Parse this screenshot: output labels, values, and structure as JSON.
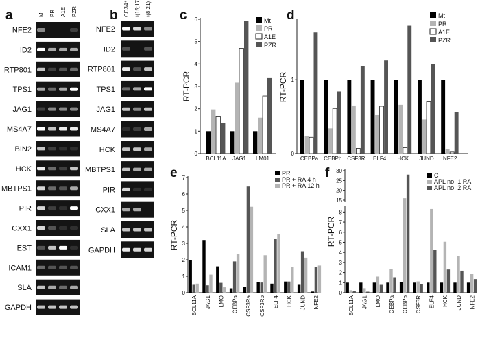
{
  "panels": {
    "a": "a",
    "b": "b",
    "c": "c",
    "d": "d",
    "e": "e",
    "f": "f"
  },
  "gels": [
    {
      "panel": "a",
      "lanes": [
        "Mt",
        "PR",
        "A1E",
        "PZR"
      ],
      "rows": [
        {
          "gene": "NFE2",
          "bands": [
            0.5,
            0,
            0,
            0.2
          ]
        },
        {
          "gene": "ID2",
          "bands": [
            1,
            0.6,
            0.6,
            0.6
          ]
        },
        {
          "gene": "RTP801",
          "bands": [
            0.7,
            0.2,
            0.3,
            0.4
          ]
        },
        {
          "gene": "TPS1",
          "bands": [
            0.6,
            0.4,
            0.6,
            1
          ]
        },
        {
          "gene": "JAG1",
          "bands": [
            0.2,
            0.5,
            0.5,
            0.5
          ]
        },
        {
          "gene": "MS4A7",
          "bands": [
            1,
            0.7,
            0.9,
            0.9
          ]
        },
        {
          "gene": "BIN2",
          "bands": [
            0.7,
            0.2,
            0.1,
            0.1
          ]
        },
        {
          "gene": "HCK",
          "bands": [
            0.9,
            0.4,
            0.2,
            0.7
          ]
        },
        {
          "gene": "MBTPS1",
          "bands": [
            0.8,
            0.4,
            0.3,
            0.6
          ]
        },
        {
          "gene": "PIR",
          "bands": [
            0.8,
            0.2,
            0.1,
            1
          ]
        },
        {
          "gene": "CXX1",
          "bands": [
            0.8,
            0.3,
            0.1,
            0.1
          ]
        },
        {
          "gene": "EST",
          "bands": [
            0.3,
            0.7,
            1,
            0.1
          ]
        },
        {
          "gene": "ICAM1",
          "bands": [
            0.4,
            0.3,
            0.3,
            0.3
          ]
        },
        {
          "gene": "SLA",
          "bands": [
            0.7,
            0.6,
            0.4,
            0.6
          ]
        },
        {
          "gene": "GAPDH",
          "bands": [
            0.7,
            0.7,
            0.7,
            0.7
          ]
        }
      ]
    },
    {
      "panel": "b",
      "lanes": [
        "CD34⁺",
        "t(15;17)",
        "t(8;21)"
      ],
      "rows": [
        {
          "gene": "NFE2",
          "bands": [
            1,
            0.8,
            0.5
          ]
        },
        {
          "gene": "ID2",
          "bands": [
            0.3,
            0,
            0.3
          ]
        },
        {
          "gene": "RTP801",
          "bands": [
            0.9,
            0.3,
            0.7
          ]
        },
        {
          "gene": "TPS1",
          "bands": [
            0.4,
            0.6,
            1
          ]
        },
        {
          "gene": "JAG1",
          "bands": [
            0.7,
            0.5,
            0.7
          ]
        },
        {
          "gene": "MS4A7",
          "bands": [
            0.1,
            0.2,
            0.6
          ]
        },
        {
          "gene": "HCK",
          "bands": [
            0.7,
            0.7,
            0.6
          ]
        },
        {
          "gene": "MBTPS1",
          "bands": [
            0.7,
            0.6,
            0.6
          ]
        },
        {
          "gene": "PIR",
          "bands": [
            0.8,
            0.1,
            0.1
          ]
        },
        {
          "gene": "CXX1",
          "bands": [
            0.6,
            0.6,
            0
          ]
        },
        {
          "gene": "SLA",
          "bands": [
            0.7,
            0.7,
            0.7
          ]
        },
        {
          "gene": "GAPDH",
          "bands": [
            0.9,
            0.8,
            0.8
          ]
        }
      ]
    }
  ],
  "chart_data": [
    {
      "panel": "c",
      "type": "bar",
      "ylabel": "RT-PCR",
      "ylim": [
        0,
        6
      ],
      "yticks": [
        0,
        1,
        2,
        3,
        4,
        5,
        6
      ],
      "legend": "top-right",
      "categories": [
        "BCL11A",
        "JAG1",
        "LM01"
      ],
      "series": [
        {
          "name": "Mt",
          "color": "#000000",
          "values": [
            1,
            1,
            1
          ]
        },
        {
          "name": "PR",
          "color": "#b4b4b4",
          "values": [
            1.97,
            3.17,
            1.6
          ]
        },
        {
          "name": "A1E",
          "color": "#ffffff",
          "values": [
            1.67,
            4.7,
            2.57
          ]
        },
        {
          "name": "PZR",
          "color": "#555555",
          "values": [
            1.37,
            5.93,
            3.37
          ]
        }
      ]
    },
    {
      "panel": "d",
      "type": "bar",
      "ylabel": "RT-PCR",
      "ylim": [
        0,
        1.8
      ],
      "yticks": [
        0,
        1
      ],
      "legend": "top-right",
      "categories": [
        "CEBPa",
        "CEBPb",
        "CSF3R",
        "ELF4",
        "HCK",
        "JUND",
        "NFE2"
      ],
      "series": [
        {
          "name": "Mt",
          "color": "#000000",
          "values": [
            1,
            1,
            1,
            1,
            1,
            1,
            1
          ]
        },
        {
          "name": "PR",
          "color": "#b4b4b4",
          "values": [
            0.24,
            0.34,
            0.65,
            0.52,
            0.66,
            0.46,
            0.06
          ]
        },
        {
          "name": "A1E",
          "color": "#ffffff",
          "values": [
            0.22,
            0.61,
            0.07,
            0.64,
            0.08,
            0.7,
            0.02
          ]
        },
        {
          "name": "PZR",
          "color": "#555555",
          "values": [
            1.64,
            0.84,
            1.18,
            1.26,
            1.73,
            1.21,
            0.56
          ]
        }
      ]
    },
    {
      "panel": "e",
      "type": "bar",
      "ylabel": "RT-PCR",
      "ylim": [
        0,
        7
      ],
      "yticks": [
        0,
        1,
        2,
        3,
        4,
        5,
        6,
        7
      ],
      "legend": "top-right",
      "categories": [
        "BCL11A",
        "JAG1",
        "LMO",
        "CEBPa",
        "CSF3Ra",
        "CSF3Rb",
        "ELF4",
        "HCK",
        "JUND",
        "NFE2"
      ],
      "series": [
        {
          "name": "PR",
          "color": "#000000",
          "values": [
            1.97,
            3.2,
            1.6,
            0.27,
            0.35,
            0.65,
            0.55,
            0.68,
            0.48,
            0.07
          ]
        },
        {
          "name": "PR + RA 4 h",
          "color": "#555555",
          "values": [
            0.48,
            0.45,
            0.6,
            1.9,
            6.45,
            0.62,
            3.25,
            0.68,
            2.52,
            1.55
          ]
        },
        {
          "name": "PR + RA 12 h",
          "color": "#b4b4b4",
          "values": [
            0.55,
            1.1,
            0.33,
            2.35,
            5.22,
            2.28,
            3.57,
            1.55,
            2.13,
            1.65
          ]
        }
      ]
    },
    {
      "panel": "f",
      "type": "bar",
      "ylabel": "RT-PCR",
      "ylim": [
        0,
        30
      ],
      "axis_break": [
        8.5,
        15
      ],
      "yticks": [
        0,
        1,
        2,
        3,
        4,
        5,
        6,
        7,
        8,
        15,
        20,
        25,
        30
      ],
      "legend": "top-right",
      "categories": [
        "BCL11A",
        "JAG1",
        "LMO",
        "CEBPa",
        "CEBPb",
        "CSF3R",
        "ELF4",
        "HCK",
        "JUND",
        "NFE2"
      ],
      "series": [
        {
          "name": "C",
          "color": "#000000",
          "values": [
            1,
            1,
            1,
            1,
            1.05,
            1,
            1,
            1,
            1,
            1
          ]
        },
        {
          "name": "APL no. 1 RA",
          "color": "#b4b4b4",
          "values": [
            0.25,
            0.45,
            1.6,
            2.35,
            16,
            1.12,
            8.3,
            5.05,
            3.62,
            1.88
          ]
        },
        {
          "name": "APL no. 2 RA",
          "color": "#555555",
          "values": [
            0.2,
            0.1,
            0.78,
            1.53,
            28,
            0.85,
            4.25,
            2.3,
            2.18,
            1.35
          ]
        }
      ]
    }
  ]
}
